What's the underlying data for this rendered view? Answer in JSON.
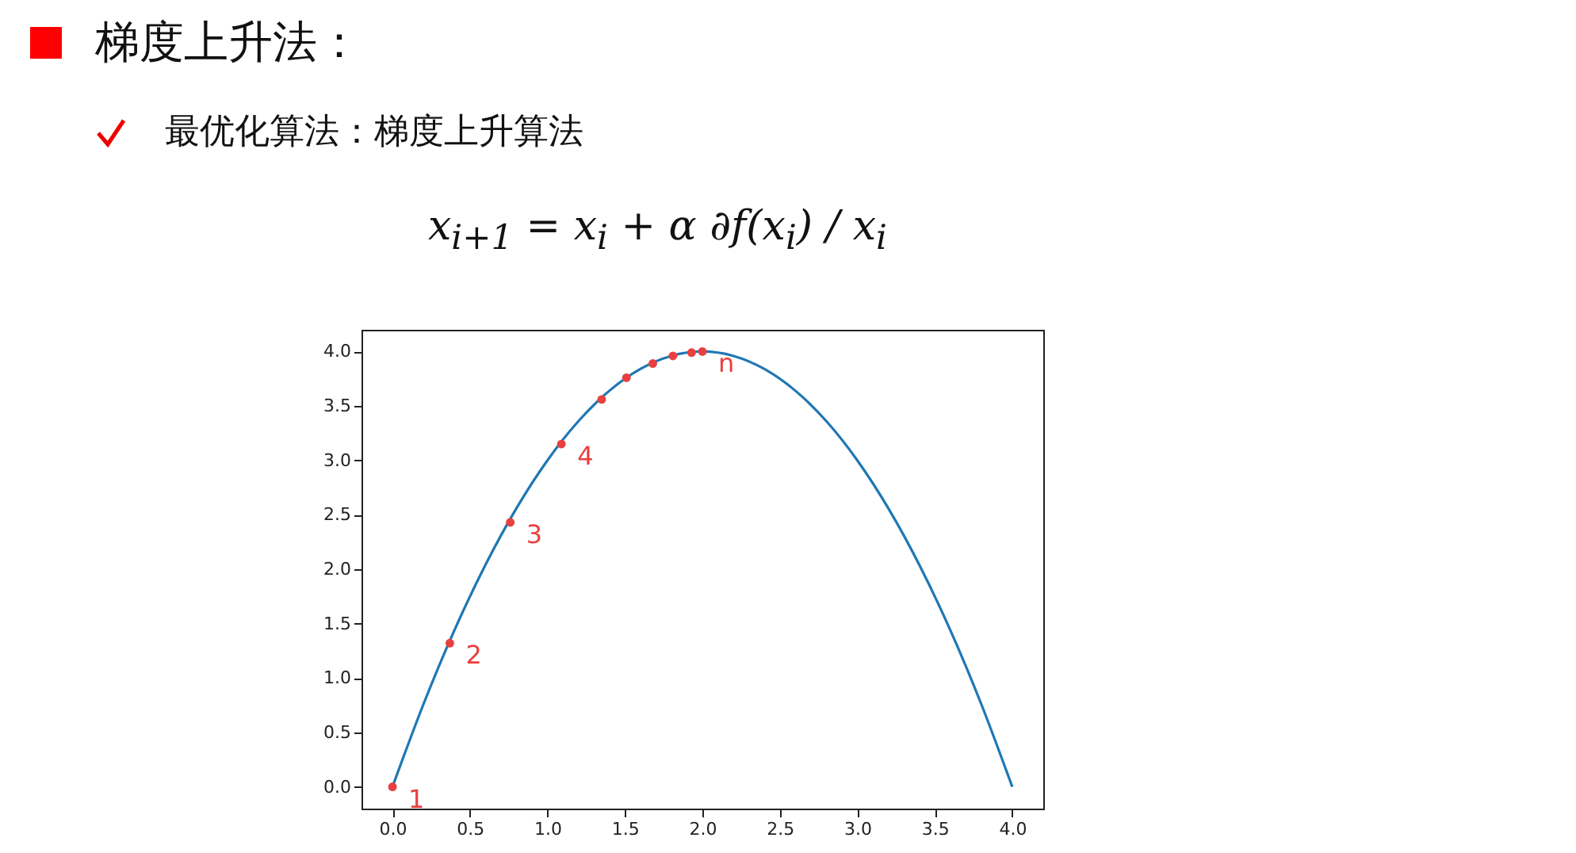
{
  "chart_data": {
    "type": "line",
    "title": "梯度上升法：",
    "subtitle": "最优化算法：梯度上升算法",
    "annotations": [
      "x$_{i+1}$ = x$_{i}$ + α ∂f(x$_{i}$) / x$_{i}$",
      {
        "text": "1",
        "x": 0,
        "y": 0
      },
      {
        "text": "2",
        "x": 0.37,
        "y": 1.32
      },
      {
        "text": "3",
        "x": 0.76,
        "y": 2.43
      },
      {
        "text": "4",
        "x": 1.09,
        "y": 3.15
      },
      {
        "text": "n",
        "x": 2.0,
        "y": 4.0
      }
    ],
    "xlim": [
      -0.2,
      4.2
    ],
    "ylim": [
      -0.2,
      4.2
    ],
    "xticks": [
      {
        "value": 0,
        "label": "0.0"
      },
      0.5,
      {
        "value": 1,
        "label": "1.0"
      },
      1.5,
      {
        "value": 2,
        "label": "2.0"
      },
      2.5,
      {
        "value": 3,
        "label": "3.0"
      },
      3.5,
      {
        "value": 4,
        "label": "4.0"
      }
    ],
    "yticks": [
      {
        "value": 0,
        "label": "0.0"
      },
      0.5,
      {
        "value": 1,
        "label": "1.0"
      },
      1.5,
      {
        "value": 2,
        "label": "2.0"
      },
      2.5,
      {
        "value": 3,
        "label": "3.0"
      },
      3.5,
      {
        "value": 4,
        "label": "4.0"
      }
    ],
    "grid": false,
    "series": [
      {
        "type": "line",
        "color": "#1f77b4",
        "x": [
          0,
          0.2,
          0.4,
          0.6,
          0.8,
          1,
          1.2,
          1.4,
          1.6,
          1.8,
          2,
          2.2,
          2.4,
          2.6,
          2.8,
          3,
          3.2,
          3.4,
          3.6,
          3.8,
          4
        ],
        "values": [
          0,
          0.76,
          1.44,
          2.04,
          2.56,
          3,
          3.36,
          3.64,
          3.84,
          3.96,
          4,
          3.96,
          3.84,
          3.64,
          3.36,
          3,
          2.56,
          2.04,
          1.44,
          0.76,
          0
        ]
      },
      {
        "type": "scatter",
        "color": "#e8403f",
        "marker": "circle",
        "x": [
          0,
          0.37,
          0.76,
          1.09,
          1.35,
          1.51,
          1.68,
          1.81,
          1.93,
          2.0
        ],
        "values": [
          0,
          1.32,
          2.43,
          3.15,
          3.56,
          3.76,
          3.89,
          3.96,
          3.99,
          4.0
        ]
      }
    ]
  }
}
